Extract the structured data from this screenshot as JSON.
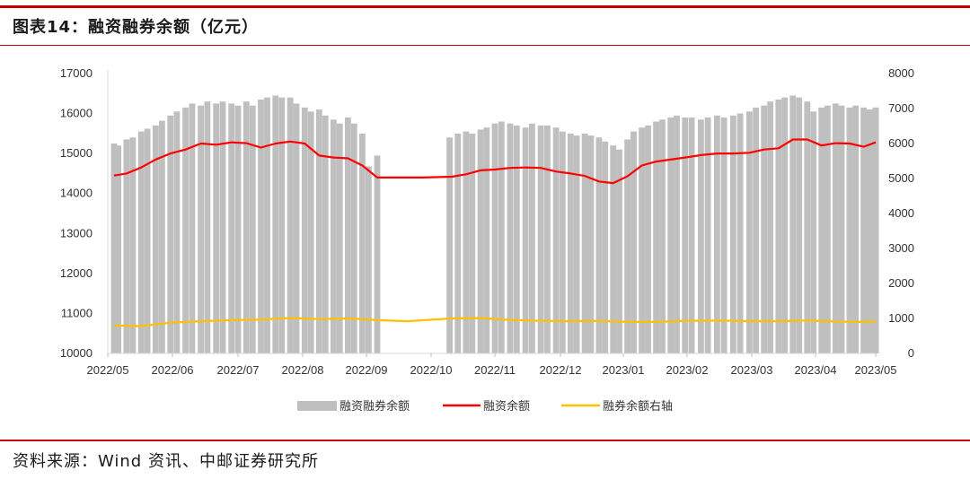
{
  "header": {
    "title": "图表14：融资融券余额（亿元）"
  },
  "footer": {
    "source": "资料来源：Wind 资讯、中邮证券研究所"
  },
  "colors": {
    "accent": "#c00000",
    "bars": "#bfbfbf",
    "financing": "#ff0000",
    "short": "#ffc000"
  },
  "chart_data": {
    "type": "bar",
    "combo": "bar + line (left axis), line (right axis)",
    "x_tick_labels": [
      "2022/05",
      "2022/06",
      "2022/07",
      "2022/08",
      "2022/09",
      "2022/10",
      "2022/11",
      "2022/12",
      "2023/01",
      "2023/02",
      "2023/03",
      "2023/04",
      "2023/05"
    ],
    "y_left": {
      "range": [
        10000,
        17000
      ],
      "ticks": [
        "17000",
        "16000",
        "15000",
        "14000",
        "13000",
        "12000",
        "11000",
        "10000"
      ]
    },
    "y_right": {
      "range": [
        0,
        8000
      ],
      "ticks": [
        "8000",
        "7000",
        "6000",
        "5000",
        "4000",
        "3000",
        "2000",
        "1000",
        "0"
      ]
    },
    "grid": false,
    "legend_position": "bottom",
    "series": [
      {
        "name": "融资融券余额",
        "kind": "bar",
        "axis": "left",
        "x": [
          "2022/05/04",
          "2022/05/06",
          "2022/05/10",
          "2022/05/13",
          "2022/05/17",
          "2022/05/20",
          "2022/05/24",
          "2022/05/27",
          "2022/05/31",
          "2022/06/03",
          "2022/06/07",
          "2022/06/10",
          "2022/06/14",
          "2022/06/17",
          "2022/06/21",
          "2022/06/24",
          "2022/06/28",
          "2022/07/01",
          "2022/07/05",
          "2022/07/08",
          "2022/07/12",
          "2022/07/15",
          "2022/07/19",
          "2022/07/22",
          "2022/07/26",
          "2022/07/29",
          "2022/08/02",
          "2022/08/05",
          "2022/08/09",
          "2022/08/12",
          "2022/08/16",
          "2022/08/19",
          "2022/08/23",
          "2022/08/26",
          "2022/08/30",
          "2022/09/02",
          "2022/09/06",
          "2022/10/10",
          "2022/10/14",
          "2022/10/18",
          "2022/10/21",
          "2022/10/25",
          "2022/10/28",
          "2022/11/01",
          "2022/11/04",
          "2022/11/08",
          "2022/11/11",
          "2022/11/15",
          "2022/11/18",
          "2022/11/22",
          "2022/11/25",
          "2022/11/29",
          "2022/12/02",
          "2022/12/06",
          "2022/12/09",
          "2022/12/13",
          "2022/12/16",
          "2022/12/20",
          "2022/12/23",
          "2022/12/27",
          "2022/12/30",
          "2023/01/03",
          "2023/01/06",
          "2023/01/10",
          "2023/01/13",
          "2023/01/17",
          "2023/01/20",
          "2023/01/24",
          "2023/01/27",
          "2023/01/31",
          "2023/02/03",
          "2023/02/07",
          "2023/02/10",
          "2023/02/14",
          "2023/02/17",
          "2023/02/21",
          "2023/02/24",
          "2023/02/28",
          "2023/03/03",
          "2023/03/07",
          "2023/03/10",
          "2023/03/14",
          "2023/03/17",
          "2023/03/21",
          "2023/03/24",
          "2023/03/28",
          "2023/03/31",
          "2023/04/04",
          "2023/04/07",
          "2023/04/11",
          "2023/04/14",
          "2023/04/18",
          "2023/04/21",
          "2023/04/25",
          "2023/04/28",
          "2023/05/02",
          "2023/05/05"
        ],
        "values": [
          15250,
          15200,
          15350,
          15400,
          15550,
          15620,
          15700,
          15820,
          15950,
          16050,
          16150,
          16250,
          16200,
          16300,
          16250,
          16300,
          16250,
          16200,
          16300,
          16200,
          16350,
          16400,
          16450,
          16400,
          16400,
          16250,
          16150,
          16050,
          16100,
          15950,
          15850,
          15750,
          15900,
          15750,
          15500,
          14680,
          14950,
          15400,
          15500,
          15550,
          15500,
          15600,
          15650,
          15750,
          15800,
          15750,
          15700,
          15650,
          15750,
          15700,
          15700,
          15650,
          15550,
          15500,
          15450,
          15500,
          15450,
          15400,
          15300,
          15200,
          15100,
          15350,
          15550,
          15650,
          15700,
          15800,
          15850,
          15900,
          15950,
          15900,
          15900,
          15850,
          15900,
          15950,
          15900,
          15950,
          16000,
          16050,
          16150,
          16200,
          16300,
          16350,
          16400,
          16450,
          16400,
          16300,
          16050,
          16150,
          16200,
          16250,
          16200,
          16150,
          16200,
          16150,
          16100,
          16150,
          16150
        ]
      },
      {
        "name": "融资余额",
        "kind": "line",
        "axis": "left",
        "x": [
          "2022/05/04",
          "2022/05/10",
          "2022/05/17",
          "2022/05/24",
          "2022/05/31",
          "2022/06/07",
          "2022/06/14",
          "2022/06/21",
          "2022/06/28",
          "2022/07/05",
          "2022/07/12",
          "2022/07/19",
          "2022/07/26",
          "2022/08/02",
          "2022/08/09",
          "2022/08/16",
          "2022/08/23",
          "2022/08/30",
          "2022/09/06",
          "2022/09/13",
          "2022/09/20",
          "2022/09/27",
          "2022/10/11",
          "2022/10/18",
          "2022/10/25",
          "2022/11/01",
          "2022/11/08",
          "2022/11/15",
          "2022/11/22",
          "2022/11/29",
          "2022/12/06",
          "2022/12/13",
          "2022/12/20",
          "2022/12/27",
          "2023/01/03",
          "2023/01/10",
          "2023/01/17",
          "2023/01/31",
          "2023/02/07",
          "2023/02/14",
          "2023/02/21",
          "2023/02/28",
          "2023/03/07",
          "2023/03/14",
          "2023/03/21",
          "2023/03/28",
          "2023/04/04",
          "2023/04/11",
          "2023/04/18",
          "2023/04/25",
          "2023/05/05"
        ],
        "values": [
          14450,
          14500,
          14650,
          14850,
          15000,
          15100,
          15250,
          15220,
          15280,
          15260,
          15150,
          15250,
          15300,
          15250,
          14950,
          14900,
          14880,
          14700,
          14400,
          14400,
          14400,
          14400,
          14420,
          14480,
          14580,
          14600,
          14640,
          14650,
          14640,
          14550,
          14500,
          14440,
          14300,
          14260,
          14430,
          14700,
          14800,
          14900,
          14960,
          15000,
          15000,
          15020,
          15100,
          15130,
          15350,
          15350,
          15200,
          15260,
          15250,
          15170,
          15280
        ]
      },
      {
        "name": "融券余额右轴",
        "kind": "line",
        "axis": "right",
        "x": [
          "2022/05/04",
          "2022/05/17",
          "2022/05/31",
          "2022/06/14",
          "2022/06/28",
          "2022/07/12",
          "2022/07/26",
          "2022/08/09",
          "2022/08/23",
          "2022/09/06",
          "2022/09/20",
          "2022/10/11",
          "2022/10/25",
          "2022/11/08",
          "2022/11/22",
          "2022/12/06",
          "2022/12/20",
          "2023/01/03",
          "2023/01/17",
          "2023/01/31",
          "2023/02/14",
          "2023/02/28",
          "2023/03/14",
          "2023/03/28",
          "2023/04/11",
          "2023/04/25",
          "2023/05/05"
        ],
        "values": [
          800,
          780,
          880,
          920,
          950,
          970,
          1010,
          980,
          1000,
          950,
          920,
          1000,
          1010,
          960,
          930,
          920,
          930,
          900,
          900,
          930,
          940,
          920,
          920,
          940,
          910,
          900,
          920
        ]
      }
    ]
  }
}
